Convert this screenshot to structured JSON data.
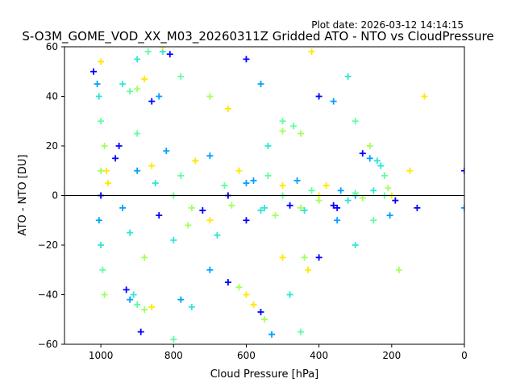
{
  "plot_date": "Plot date: 2026-03-12 14:14:15",
  "chart_data": {
    "type": "scatter",
    "title": "S-O3M_GOME_VOD_XX_M03_20260311Z Gridded ATO - NTO vs CloudPressure",
    "xlabel": "Cloud Pressure [hPa]",
    "ylabel": "ATO - NTO [DU]",
    "xlim": [
      1100,
      0
    ],
    "ylim": [
      -60,
      60
    ],
    "x_ticks": [
      1000,
      800,
      600,
      400,
      200,
      0
    ],
    "x_tick_labels": [
      "1000",
      "800",
      "600",
      "400",
      "200",
      "0"
    ],
    "y_ticks": [
      60,
      40,
      20,
      0,
      -20,
      -40,
      -60
    ],
    "y_tick_labels": [
      "60",
      "40",
      "20",
      "0",
      "−20",
      "−40",
      "−60"
    ],
    "grid": false,
    "marker": "plus",
    "reference_line_y": 0,
    "colors": [
      "#0000ff",
      "#00a0ff",
      "#2ee6d4",
      "#5cff9c",
      "#a0ff5c",
      "#ffe800"
    ],
    "series": [
      {
        "values": [
          [
            1020,
            50
          ],
          [
            1010,
            45
          ],
          [
            1005,
            40
          ],
          [
            1000,
            30
          ],
          [
            990,
            20
          ],
          [
            985,
            10
          ],
          [
            1000,
            0
          ],
          [
            1005,
            -10
          ],
          [
            1000,
            -20
          ],
          [
            995,
            -30
          ],
          [
            990,
            -40
          ],
          [
            1000,
            54
          ],
          [
            950,
            20
          ],
          [
            900,
            10
          ],
          [
            850,
            5
          ],
          [
            800,
            0
          ],
          [
            750,
            -5
          ],
          [
            700,
            -10
          ],
          [
            650,
            0
          ],
          [
            600,
            5
          ],
          [
            550,
            -5
          ],
          [
            500,
            0
          ],
          [
            450,
            -5
          ],
          [
            400,
            0
          ],
          [
            350,
            -5
          ],
          [
            300,
            0
          ],
          [
            250,
            2
          ],
          [
            220,
            0
          ]
        ]
      },
      {
        "values": [
          [
            830,
            58
          ],
          [
            780,
            48
          ],
          [
            700,
            40
          ],
          [
            650,
            35
          ],
          [
            600,
            55
          ],
          [
            560,
            45
          ],
          [
            540,
            20
          ],
          [
            500,
            30
          ],
          [
            450,
            25
          ],
          [
            420,
            58
          ],
          [
            400,
            40
          ],
          [
            360,
            38
          ],
          [
            320,
            48
          ],
          [
            300,
            30
          ],
          [
            260,
            20
          ],
          [
            600,
            -40
          ],
          [
            650,
            -35
          ],
          [
            700,
            -30
          ],
          [
            750,
            -45
          ],
          [
            800,
            -58
          ],
          [
            550,
            -50
          ],
          [
            500,
            -25
          ],
          [
            400,
            -25
          ],
          [
            350,
            -10
          ],
          [
            300,
            -20
          ],
          [
            250,
            -10
          ],
          [
            180,
            -30
          ],
          [
            110,
            40
          ],
          [
            0,
            10
          ],
          [
            0,
            -5
          ]
        ]
      },
      {
        "values": [
          [
            1000,
            10
          ],
          [
            980,
            5
          ],
          [
            960,
            15
          ],
          [
            940,
            -5
          ],
          [
            920,
            -15
          ],
          [
            900,
            25
          ],
          [
            880,
            -25
          ],
          [
            860,
            12
          ],
          [
            840,
            -8
          ],
          [
            820,
            18
          ],
          [
            800,
            -18
          ],
          [
            780,
            8
          ],
          [
            760,
            -12
          ],
          [
            740,
            14
          ],
          [
            720,
            -6
          ],
          [
            700,
            16
          ],
          [
            680,
            -16
          ],
          [
            660,
            4
          ],
          [
            640,
            -4
          ],
          [
            620,
            10
          ],
          [
            600,
            -10
          ],
          [
            580,
            6
          ],
          [
            560,
            -6
          ],
          [
            540,
            8
          ],
          [
            520,
            -8
          ],
          [
            500,
            4
          ],
          [
            480,
            -4
          ],
          [
            460,
            6
          ],
          [
            440,
            -6
          ],
          [
            420,
            2
          ],
          [
            400,
            -2
          ],
          [
            380,
            4
          ],
          [
            360,
            -4
          ],
          [
            340,
            2
          ],
          [
            320,
            -2
          ],
          [
            300,
            1
          ],
          [
            280,
            -1
          ],
          [
            150,
            10
          ],
          [
            130,
            -5
          ]
        ]
      },
      {
        "values": [
          [
            930,
            -38
          ],
          [
            920,
            -42
          ],
          [
            910,
            -40
          ],
          [
            900,
            -44
          ],
          [
            880,
            -46
          ],
          [
            860,
            -45
          ],
          [
            890,
            -55
          ],
          [
            780,
            -42
          ],
          [
            940,
            45
          ],
          [
            920,
            42
          ],
          [
            900,
            43
          ],
          [
            880,
            47
          ],
          [
            860,
            38
          ],
          [
            840,
            40
          ],
          [
            900,
            55
          ],
          [
            870,
            58
          ],
          [
            620,
            -37
          ],
          [
            580,
            -44
          ],
          [
            560,
            -47
          ],
          [
            530,
            -56
          ],
          [
            480,
            -40
          ],
          [
            450,
            -55
          ],
          [
            440,
            -25
          ],
          [
            430,
            -30
          ],
          [
            280,
            17
          ],
          [
            260,
            15
          ],
          [
            240,
            14
          ],
          [
            220,
            8
          ],
          [
            210,
            3
          ],
          [
            200,
            0
          ],
          [
            190,
            -2
          ],
          [
            205,
            -8
          ],
          [
            230,
            12
          ],
          [
            470,
            28
          ],
          [
            500,
            26
          ],
          [
            830,
            60
          ],
          [
            810,
            57
          ]
        ]
      }
    ]
  }
}
